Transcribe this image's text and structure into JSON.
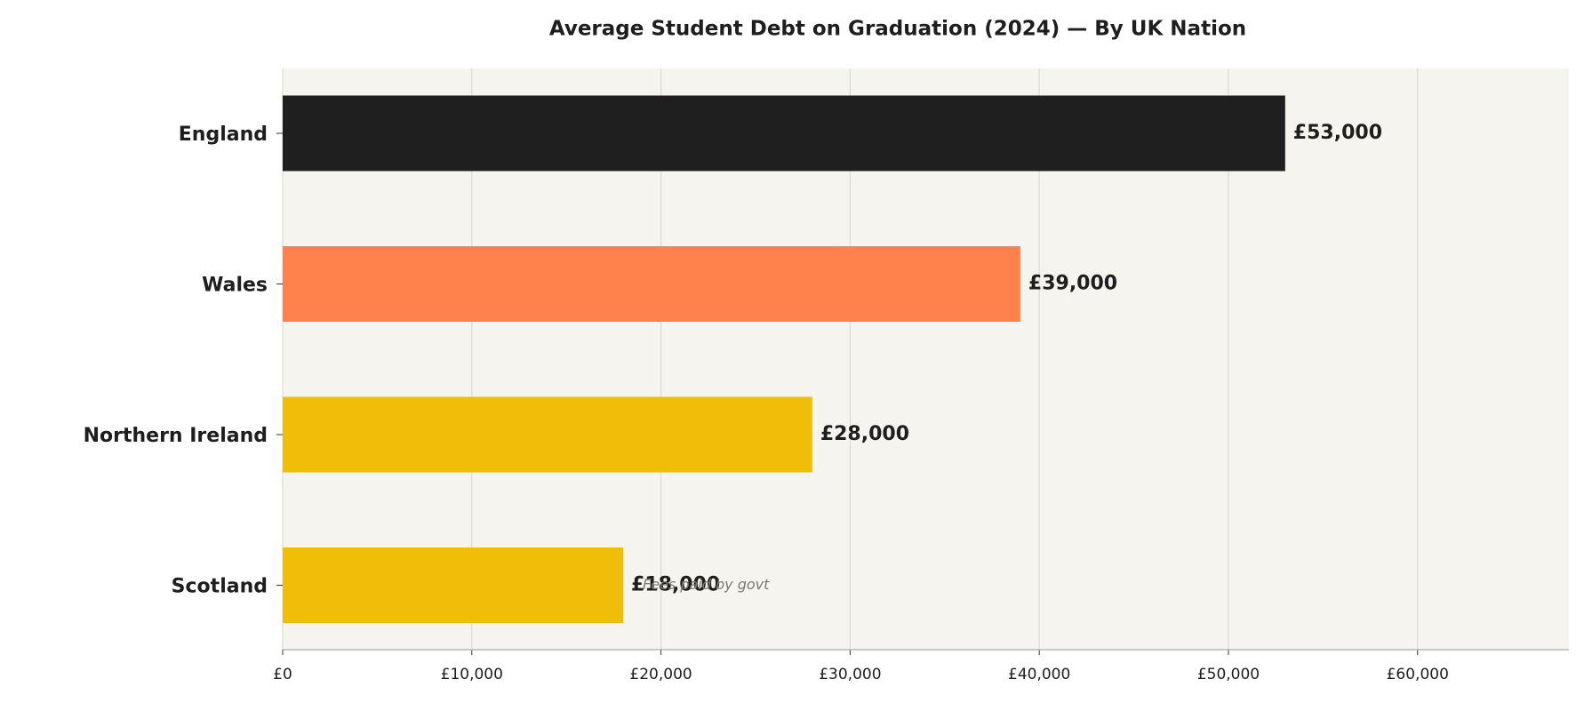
{
  "chart_data": {
    "type": "bar",
    "orientation": "horizontal",
    "title": "Average Student Debt on Graduation (2024) — By UK Nation",
    "categories": [
      "England",
      "Wales",
      "Northern Ireland",
      "Scotland"
    ],
    "values": [
      53000,
      39000,
      28000,
      18000
    ],
    "value_labels": [
      "£53,000",
      "£39,000",
      "£28,000",
      "£18,000"
    ],
    "colors": [
      "#1e1f1e",
      "#ff824c",
      "#f0bd09",
      "#f0bd09"
    ],
    "xlim": [
      0,
      68000
    ],
    "xticks": [
      {
        "value": 0,
        "label": "£0"
      },
      {
        "value": 10000,
        "label": "£10,000"
      },
      {
        "value": 20000,
        "label": "£20,000"
      },
      {
        "value": 30000,
        "label": "£30,000"
      },
      {
        "value": 40000,
        "label": "£40,000"
      },
      {
        "value": 50000,
        "label": "£50,000"
      },
      {
        "value": 60000,
        "label": "£60,000"
      }
    ],
    "grid": true,
    "annotations": [
      {
        "category": 3,
        "text": "Fees paid by govt"
      }
    ]
  }
}
